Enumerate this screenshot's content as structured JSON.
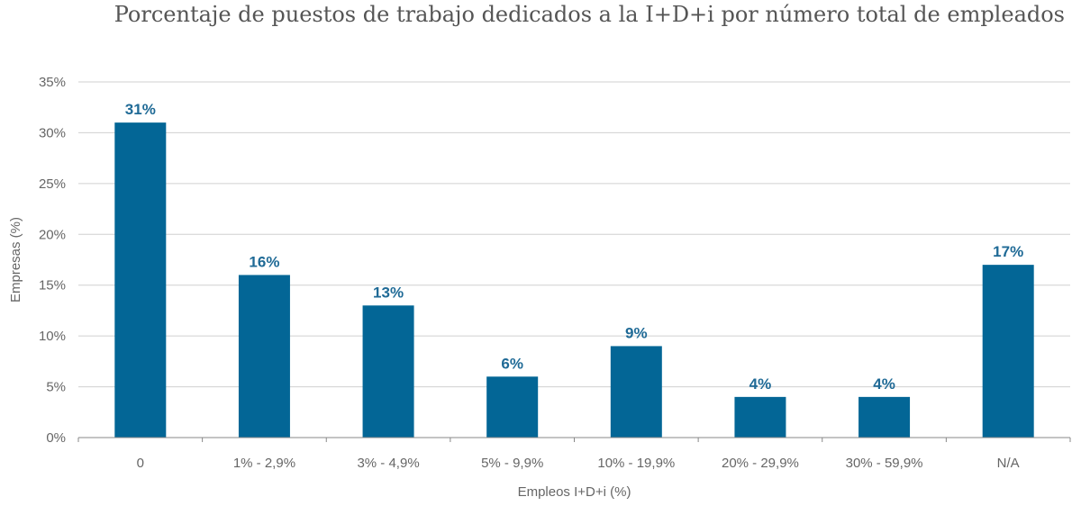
{
  "chart_data": {
    "type": "bar",
    "title": "Porcentaje de puestos de trabajo dedicados a la I+D+i por número total de empleados",
    "xlabel": "Empleos I+D+i (%)",
    "ylabel": "Empresas (%)",
    "categories": [
      "0",
      "1% - 2,9%",
      "3% - 4,9%",
      "5% - 9,9%",
      "10% - 19,9%",
      "20% - 29,9%",
      "30% - 59,9%",
      "N/A"
    ],
    "values": [
      31,
      16,
      13,
      6,
      9,
      4,
      4,
      17
    ],
    "data_labels": [
      "31%",
      "16%",
      "13%",
      "6%",
      "9%",
      "4%",
      "4%",
      "17%"
    ],
    "ylim": [
      0,
      35
    ],
    "yticks": [
      0,
      5,
      10,
      15,
      20,
      25,
      30,
      35
    ],
    "ytick_labels": [
      "0%",
      "5%",
      "10%",
      "15%",
      "20%",
      "25%",
      "30%",
      "35%"
    ],
    "grid": true,
    "legend": "none",
    "bar_color": "#036696",
    "label_color": "#1f6a96"
  }
}
